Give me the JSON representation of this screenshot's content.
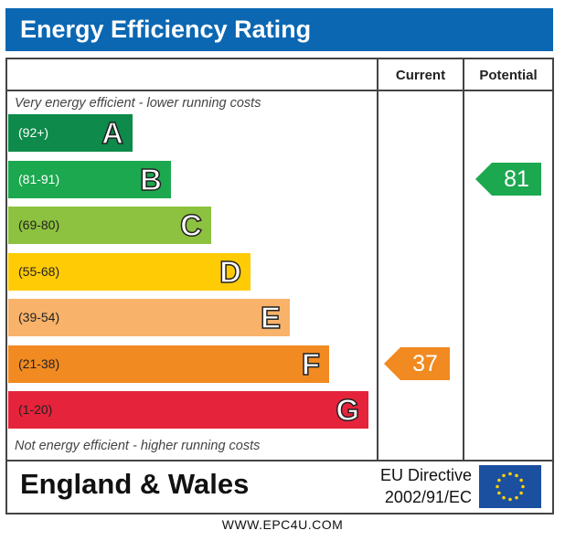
{
  "title": "Energy Efficiency Rating",
  "columns": {
    "current": "Current",
    "potential": "Potential"
  },
  "top_note": "Very energy efficient - lower running costs",
  "bottom_note": "Not energy efficient - higher running costs",
  "region": "England & Wales",
  "directive": {
    "line1": "EU Directive",
    "line2": "2002/91/EC"
  },
  "website": "WWW.EPC4U.COM",
  "colors": {
    "header": "#0b67b2",
    "border": "#444444"
  },
  "chart_data": {
    "type": "bar",
    "bands": [
      {
        "letter": "A",
        "range": "(92+)",
        "color": "#0e8a4a",
        "range_color": "#ffffff"
      },
      {
        "letter": "B",
        "range": "(81-91)",
        "color": "#1ca84f",
        "range_color": "#ffffff"
      },
      {
        "letter": "C",
        "range": "(69-80)",
        "color": "#8cc23f",
        "range_color": "#222222"
      },
      {
        "letter": "D",
        "range": "(55-68)",
        "color": "#ffcb05",
        "range_color": "#222222"
      },
      {
        "letter": "E",
        "range": "(39-54)",
        "color": "#f8b26a",
        "range_color": "#222222"
      },
      {
        "letter": "F",
        "range": "(21-38)",
        "color": "#f18a21",
        "range_color": "#222222"
      },
      {
        "letter": "G",
        "range": "(1-20)",
        "color": "#e5233b",
        "range_color": "#222222"
      }
    ],
    "current": {
      "value": 37,
      "band": "F",
      "color": "#f18a21"
    },
    "potential": {
      "value": 81,
      "band": "B",
      "color": "#1ca84f"
    }
  }
}
